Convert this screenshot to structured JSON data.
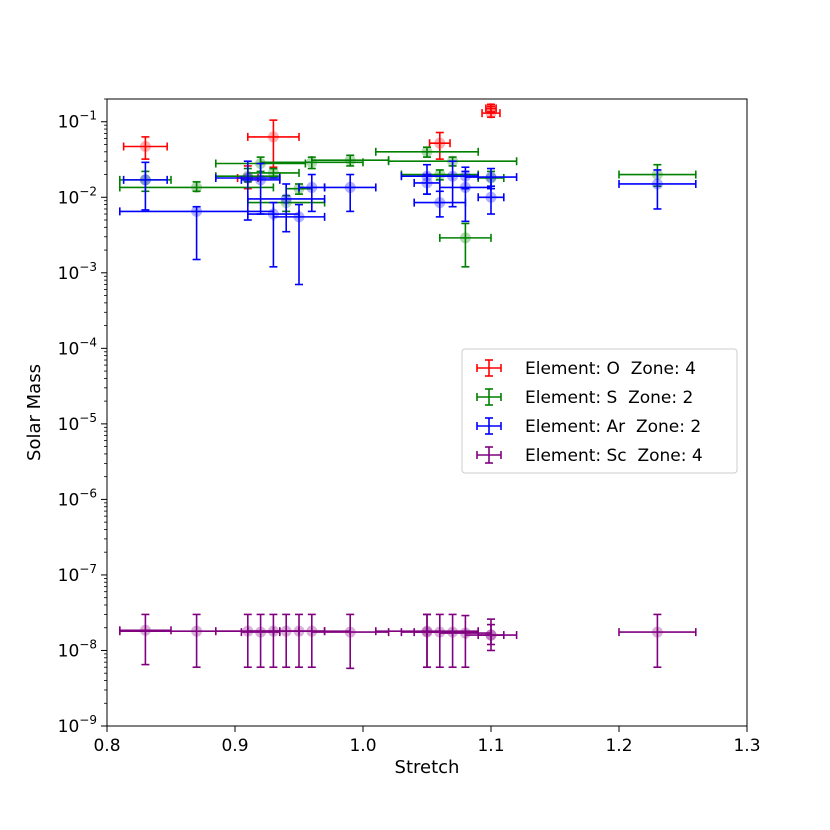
{
  "chart_data": {
    "type": "scatter",
    "title": "",
    "xlabel": "Stretch",
    "ylabel": "Solar Mass",
    "xscale": "linear",
    "yscale": "log",
    "xlim": [
      0.8,
      1.3
    ],
    "ylim": [
      1e-09,
      0.2
    ],
    "xticks": [
      {
        "value": 0.8,
        "label": "0.8"
      },
      {
        "value": 0.9,
        "label": "0.9"
      },
      {
        "value": 1.0,
        "label": "1.0"
      },
      {
        "value": 1.1,
        "label": "1.1"
      },
      {
        "value": 1.2,
        "label": "1.2"
      },
      {
        "value": 1.3,
        "label": "1.3"
      }
    ],
    "yticks": [
      {
        "exp": -9,
        "base": "10",
        "sup": "−9"
      },
      {
        "exp": -8,
        "base": "10",
        "sup": "−8"
      },
      {
        "exp": -7,
        "base": "10",
        "sup": "−7"
      },
      {
        "exp": -6,
        "base": "10",
        "sup": "−6"
      },
      {
        "exp": -5,
        "base": "10",
        "sup": "−5"
      },
      {
        "exp": -4,
        "base": "10",
        "sup": "−4"
      },
      {
        "exp": -3,
        "base": "10",
        "sup": "−3"
      },
      {
        "exp": -2,
        "base": "10",
        "sup": "−2"
      },
      {
        "exp": -1,
        "base": "10",
        "sup": "−1"
      }
    ],
    "legend_position": "center-right",
    "series": [
      {
        "name": "Element: O  Zone: 4",
        "color": "#ff0000",
        "points": [
          {
            "x": 0.83,
            "y": 0.047,
            "xerr": 0.017,
            "ylo": 0.032,
            "yhi": 0.063
          },
          {
            "x": 0.93,
            "y": 0.063,
            "xerr": 0.02,
            "ylo": 0.025,
            "yhi": 0.105
          },
          {
            "x": 0.91,
            "y": 0.018,
            "xerr": 0.008,
            "ylo": 0.013,
            "yhi": 0.026
          },
          {
            "x": 1.06,
            "y": 0.052,
            "xerr": 0.008,
            "ylo": 0.032,
            "yhi": 0.072
          },
          {
            "x": 1.1,
            "y": 0.13,
            "xerr": 0.007,
            "ylo": 0.115,
            "yhi": 0.16
          },
          {
            "x": 1.1,
            "y": 0.15,
            "xerr": 0.004,
            "ylo": 0.135,
            "yhi": 0.17
          }
        ]
      },
      {
        "name": "Element: S  Zone: 2",
        "color": "#008000",
        "points": [
          {
            "x": 0.83,
            "y": 0.017,
            "xerr": 0.02,
            "ylo": 0.012,
            "yhi": 0.022
          },
          {
            "x": 0.87,
            "y": 0.0135,
            "xerr": 0.06,
            "ylo": 0.012,
            "yhi": 0.016
          },
          {
            "x": 0.91,
            "y": 0.019,
            "xerr": 0.025,
            "ylo": 0.016,
            "yhi": 0.024
          },
          {
            "x": 0.92,
            "y": 0.028,
            "xerr": 0.035,
            "ylo": 0.022,
            "yhi": 0.034
          },
          {
            "x": 0.93,
            "y": 0.021,
            "xerr": 0.02,
            "ylo": 0.018,
            "yhi": 0.024
          },
          {
            "x": 0.94,
            "y": 0.0085,
            "xerr": 0.03,
            "ylo": 0.0065,
            "yhi": 0.0105
          },
          {
            "x": 0.95,
            "y": 0.013,
            "xerr": 0.01,
            "ylo": 0.011,
            "yhi": 0.015
          },
          {
            "x": 0.96,
            "y": 0.029,
            "xerr": 0.04,
            "ylo": 0.024,
            "yhi": 0.034
          },
          {
            "x": 0.99,
            "y": 0.031,
            "xerr": 0.03,
            "ylo": 0.026,
            "yhi": 0.036
          },
          {
            "x": 1.05,
            "y": 0.04,
            "xerr": 0.04,
            "ylo": 0.034,
            "yhi": 0.046
          },
          {
            "x": 1.06,
            "y": 0.02,
            "xerr": 0.03,
            "ylo": 0.017,
            "yhi": 0.023
          },
          {
            "x": 1.07,
            "y": 0.03,
            "xerr": 0.05,
            "ylo": 0.026,
            "yhi": 0.034
          },
          {
            "x": 1.08,
            "y": 0.0029,
            "xerr": 0.02,
            "ylo": 0.0012,
            "yhi": 0.0045
          },
          {
            "x": 1.1,
            "y": 0.018,
            "xerr": 0.01,
            "ylo": 0.014,
            "yhi": 0.022
          },
          {
            "x": 1.23,
            "y": 0.02,
            "xerr": 0.03,
            "ylo": 0.014,
            "yhi": 0.027
          }
        ]
      },
      {
        "name": "Element: Ar  Zone: 2",
        "color": "#0000ff",
        "points": [
          {
            "x": 0.83,
            "y": 0.017,
            "xerr": 0.017,
            "ylo": 0.0068,
            "yhi": 0.029
          },
          {
            "x": 0.87,
            "y": 0.0065,
            "xerr": 0.06,
            "ylo": 0.0015,
            "yhi": 0.0075
          },
          {
            "x": 0.91,
            "y": 0.018,
            "xerr": 0.025,
            "ylo": 0.005,
            "yhi": 0.03
          },
          {
            "x": 0.92,
            "y": 0.017,
            "xerr": 0.015,
            "ylo": 0.006,
            "yhi": 0.028
          },
          {
            "x": 0.93,
            "y": 0.006,
            "xerr": 0.02,
            "ylo": 0.0012,
            "yhi": 0.0085
          },
          {
            "x": 0.94,
            "y": 0.0095,
            "xerr": 0.03,
            "ylo": 0.0035,
            "yhi": 0.015
          },
          {
            "x": 0.95,
            "y": 0.0055,
            "xerr": 0.02,
            "ylo": 0.0007,
            "yhi": 0.008
          },
          {
            "x": 0.96,
            "y": 0.0135,
            "xerr": 0.01,
            "ylo": 0.0065,
            "yhi": 0.02
          },
          {
            "x": 0.99,
            "y": 0.0135,
            "xerr": 0.02,
            "ylo": 0.0065,
            "yhi": 0.02
          },
          {
            "x": 1.05,
            "y": 0.019,
            "xerr": 0.02,
            "ylo": 0.011,
            "yhi": 0.027
          },
          {
            "x": 1.05,
            "y": 0.0155,
            "xerr": 0.01,
            "ylo": 0.011,
            "yhi": 0.02
          },
          {
            "x": 1.06,
            "y": 0.0085,
            "xerr": 0.02,
            "ylo": 0.0055,
            "yhi": 0.012
          },
          {
            "x": 1.07,
            "y": 0.019,
            "xerr": 0.02,
            "ylo": 0.0075,
            "yhi": 0.03
          },
          {
            "x": 1.08,
            "y": 0.0135,
            "xerr": 0.02,
            "ylo": 0.0048,
            "yhi": 0.022
          },
          {
            "x": 1.08,
            "y": 0.019,
            "xerr": 0.01,
            "ylo": 0.013,
            "yhi": 0.025
          },
          {
            "x": 1.1,
            "y": 0.01,
            "xerr": 0.01,
            "ylo": 0.006,
            "yhi": 0.014
          },
          {
            "x": 1.1,
            "y": 0.0185,
            "xerr": 0.02,
            "ylo": 0.013,
            "yhi": 0.024
          },
          {
            "x": 1.23,
            "y": 0.015,
            "xerr": 0.03,
            "ylo": 0.007,
            "yhi": 0.023
          }
        ]
      },
      {
        "name": "Element: Sc  Zone: 4",
        "color": "#800080",
        "points": [
          {
            "x": 0.83,
            "y": 1.85e-08,
            "xerr": 0.02,
            "ylo": 6.5e-09,
            "yhi": 3e-08
          },
          {
            "x": 0.87,
            "y": 1.8e-08,
            "xerr": 0.06,
            "ylo": 6e-09,
            "yhi": 3e-08
          },
          {
            "x": 0.91,
            "y": 1.8e-08,
            "xerr": 0.025,
            "ylo": 6e-09,
            "yhi": 3e-08
          },
          {
            "x": 0.92,
            "y": 1.75e-08,
            "xerr": 0.015,
            "ylo": 6e-09,
            "yhi": 3e-08
          },
          {
            "x": 0.93,
            "y": 1.8e-08,
            "xerr": 0.02,
            "ylo": 6e-09,
            "yhi": 3e-08
          },
          {
            "x": 0.94,
            "y": 1.8e-08,
            "xerr": 0.03,
            "ylo": 6e-09,
            "yhi": 3e-08
          },
          {
            "x": 0.95,
            "y": 1.8e-08,
            "xerr": 0.02,
            "ylo": 6e-09,
            "yhi": 3e-08
          },
          {
            "x": 0.96,
            "y": 1.8e-08,
            "xerr": 0.03,
            "ylo": 6e-09,
            "yhi": 3e-08
          },
          {
            "x": 0.99,
            "y": 1.75e-08,
            "xerr": 0.03,
            "ylo": 5.8e-09,
            "yhi": 3e-08
          },
          {
            "x": 1.05,
            "y": 1.8e-08,
            "xerr": 0.04,
            "ylo": 6e-09,
            "yhi": 3e-08
          },
          {
            "x": 1.05,
            "y": 1.75e-08,
            "xerr": 0.02,
            "ylo": 6e-09,
            "yhi": 3e-08
          },
          {
            "x": 1.06,
            "y": 1.75e-08,
            "xerr": 0.02,
            "ylo": 6e-09,
            "yhi": 3e-08
          },
          {
            "x": 1.07,
            "y": 1.75e-08,
            "xerr": 0.02,
            "ylo": 6e-09,
            "yhi": 3e-08
          },
          {
            "x": 1.08,
            "y": 1.7e-08,
            "xerr": 0.02,
            "ylo": 6e-09,
            "yhi": 2.9e-08
          },
          {
            "x": 1.1,
            "y": 1.6e-08,
            "xerr": 0.02,
            "ylo": 1e-08,
            "yhi": 2.6e-08
          },
          {
            "x": 1.1,
            "y": 1.6e-08,
            "xerr": 0.01,
            "ylo": 1.2e-08,
            "yhi": 2.2e-08
          },
          {
            "x": 1.23,
            "y": 1.75e-08,
            "xerr": 0.03,
            "ylo": 6e-09,
            "yhi": 3e-08
          }
        ]
      }
    ]
  }
}
